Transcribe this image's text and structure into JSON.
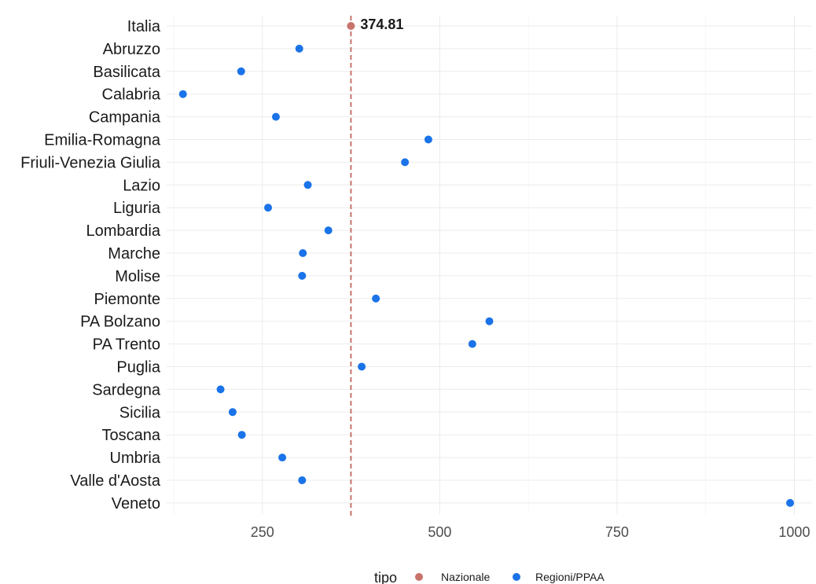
{
  "chart_data": {
    "type": "scatter",
    "categories": [
      "Italia",
      "Abruzzo",
      "Basilicata",
      "Calabria",
      "Campania",
      "Emilia-Romagna",
      "Friuli-Venezia Giulia",
      "Lazio",
      "Liguria",
      "Lombardia",
      "Marche",
      "Molise",
      "Piemonte",
      "PA Bolzano",
      "PA Trento",
      "Puglia",
      "Sardegna",
      "Sicilia",
      "Toscana",
      "Umbria",
      "Valle d'Aosta",
      "Veneto"
    ],
    "series": [
      {
        "name": "Nazionale",
        "color": "#c8736b",
        "points": [
          {
            "category": "Italia",
            "value": 374.81
          }
        ]
      },
      {
        "name": "Regioni/PPAA",
        "color": "#1a73e8",
        "points": [
          {
            "category": "Abruzzo",
            "value": 302
          },
          {
            "category": "Basilicata",
            "value": 220
          },
          {
            "category": "Calabria",
            "value": 138
          },
          {
            "category": "Campania",
            "value": 269
          },
          {
            "category": "Emilia-Romagna",
            "value": 484
          },
          {
            "category": "Friuli-Venezia Giulia",
            "value": 451
          },
          {
            "category": "Lazio",
            "value": 314
          },
          {
            "category": "Liguria",
            "value": 258
          },
          {
            "category": "Lombardia",
            "value": 343
          },
          {
            "category": "Marche",
            "value": 307
          },
          {
            "category": "Molise",
            "value": 306
          },
          {
            "category": "Piemonte",
            "value": 410
          },
          {
            "category": "PA Bolzano",
            "value": 570
          },
          {
            "category": "PA Trento",
            "value": 546
          },
          {
            "category": "Puglia",
            "value": 390
          },
          {
            "category": "Sardegna",
            "value": 191
          },
          {
            "category": "Sicilia",
            "value": 208
          },
          {
            "category": "Toscana",
            "value": 221
          },
          {
            "category": "Umbria",
            "value": 278
          },
          {
            "category": "Valle d'Aosta",
            "value": 306
          },
          {
            "category": "Veneto",
            "value": 994
          }
        ]
      }
    ],
    "reference_line": {
      "value": 374.81,
      "style": "dashed",
      "color": "#c8736b"
    },
    "annotation": {
      "category": "Italia",
      "text": "374.81"
    },
    "xticks": [
      250,
      500,
      750,
      1000
    ],
    "xlim": [
      115,
      1025
    ],
    "grid": true,
    "legend": {
      "title": "tipo",
      "position": "bottom",
      "items": [
        "Nazionale",
        "Regioni/PPAA"
      ]
    }
  }
}
